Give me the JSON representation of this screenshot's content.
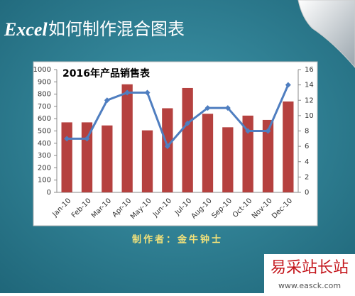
{
  "header": {
    "brand": "Excel",
    "title": "如何制作混合图表"
  },
  "footer": "制作者：金牛钟士",
  "watermark": {
    "name": "易采站长站",
    "url": "www.easck.com"
  },
  "chart_data": {
    "type": "bar-line",
    "title": "2016年产品销售表",
    "categories": [
      "Jan-10",
      "Feb-10",
      "Mar-10",
      "Apr-10",
      "May-10",
      "Jun-10",
      "Jul-10",
      "Aug-10",
      "Sep-10",
      "Oct-10",
      "Nov-10",
      "Dec-10"
    ],
    "series": [
      {
        "type": "bar",
        "color": "#b5413f",
        "values": [
          570,
          570,
          545,
          880,
          505,
          685,
          850,
          640,
          530,
          625,
          590,
          740
        ]
      },
      {
        "type": "line",
        "color": "#4f7ec0",
        "axis": "y2",
        "values": [
          7,
          7,
          12,
          13,
          13,
          6,
          9,
          11,
          11,
          8,
          8,
          14
        ]
      }
    ],
    "ylim": [
      0,
      1000
    ],
    "yticks": [
      0,
      100,
      200,
      300,
      400,
      500,
      600,
      700,
      800,
      900,
      1000
    ],
    "y2lim": [
      0,
      16
    ],
    "y2ticks": [
      0,
      2,
      4,
      6,
      8,
      10,
      12,
      14,
      16
    ],
    "grid": false
  }
}
